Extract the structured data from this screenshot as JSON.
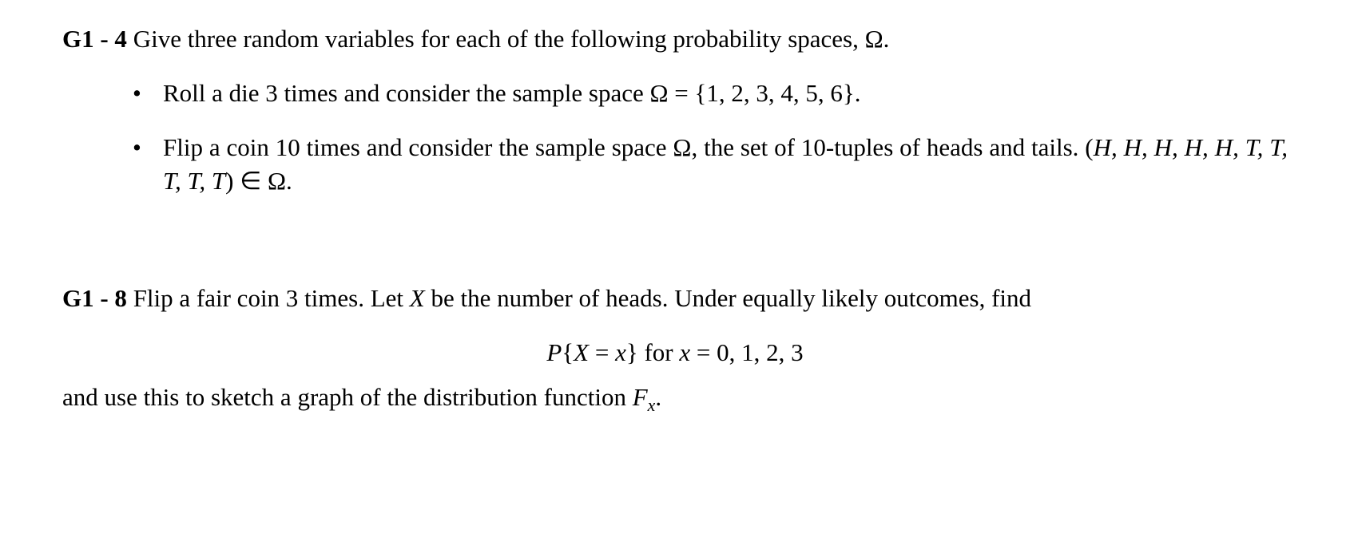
{
  "problem1": {
    "label": "G1 - 4",
    "lead": " Give three random variables for each of the following probability spaces, Ω.",
    "bullet1_a": "Roll a die 3 times and consider the sample space Ω",
    "bullet1_b": " = {1, 2, 3, 4, 5, 6}.",
    "bullet2_a": "Flip a coin 10 times and consider the sample space Ω, the set of 10-tuples of heads and tails. (",
    "bullet2_seq": "H, H, H, H, H, T, T, T, T, T",
    "bullet2_b": ") ∈ Ω."
  },
  "problem2": {
    "label": "G1 - 8",
    "lead_a": " Flip a fair coin 3 times. Let ",
    "lead_X": "X",
    "lead_b": " be the number of heads. Under equally likely outcomes, find",
    "eq_a": "P",
    "eq_b": "{",
    "eq_c": "X",
    "eq_d": " = ",
    "eq_e": "x",
    "eq_f": "} for ",
    "eq_g": "x",
    "eq_h": " = 0, 1, 2, 3",
    "tail_a": "and use this to sketch a graph of the distribution function ",
    "tail_F": "F",
    "tail_sub": "x",
    "tail_dot": "."
  }
}
